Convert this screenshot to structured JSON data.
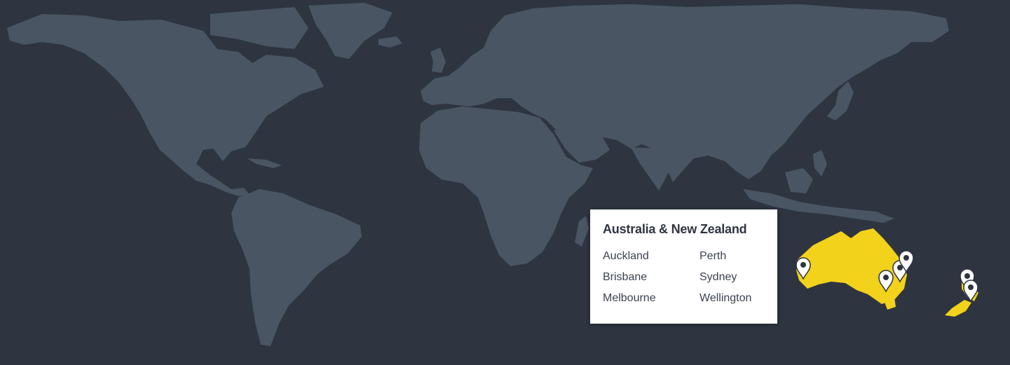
{
  "map": {
    "background_color": "#2e3440",
    "land_color": "#4a5563",
    "highlight_color": "#f2d21b",
    "highlighted_region": "Australia & New Zealand"
  },
  "card": {
    "title": "Australia & New Zealand",
    "cities": [
      "Auckland",
      "Perth",
      "Brisbane",
      "Sydney",
      "Melbourne",
      "Wellington"
    ]
  },
  "markers": [
    {
      "city": "Perth",
      "icon": "map-pin-icon"
    },
    {
      "city": "Melbourne",
      "icon": "map-pin-icon"
    },
    {
      "city": "Sydney",
      "icon": "map-pin-icon"
    },
    {
      "city": "Brisbane",
      "icon": "map-pin-icon"
    },
    {
      "city": "Auckland",
      "icon": "map-pin-icon"
    },
    {
      "city": "Wellington",
      "icon": "map-pin-icon"
    }
  ]
}
